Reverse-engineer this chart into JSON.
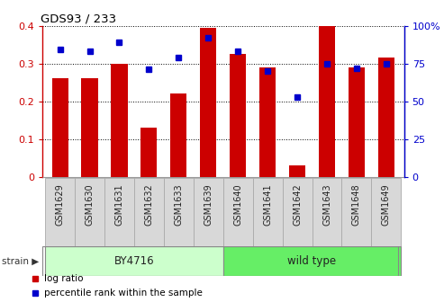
{
  "title": "GDS93 / 233",
  "categories": [
    "GSM1629",
    "GSM1630",
    "GSM1631",
    "GSM1632",
    "GSM1633",
    "GSM1639",
    "GSM1640",
    "GSM1641",
    "GSM1642",
    "GSM1643",
    "GSM1648",
    "GSM1649"
  ],
  "log_ratio": [
    0.26,
    0.26,
    0.3,
    0.13,
    0.22,
    0.395,
    0.325,
    0.29,
    0.03,
    0.4,
    0.29,
    0.315
  ],
  "percentile_rank": [
    84,
    83,
    89,
    71,
    79,
    92,
    83,
    70,
    53,
    75,
    72,
    75
  ],
  "strain_groups": [
    {
      "label": "BY4716",
      "start": 0,
      "end": 5,
      "color": "#ccffcc"
    },
    {
      "label": "wild type",
      "start": 6,
      "end": 11,
      "color": "#66ee66"
    }
  ],
  "bar_color": "#cc0000",
  "dot_color": "#0000cc",
  "bar_width": 0.55,
  "ylim_left": [
    0,
    0.4
  ],
  "ylim_right": [
    0,
    100
  ],
  "yticks_left": [
    0,
    0.1,
    0.2,
    0.3,
    0.4
  ],
  "yticks_right": [
    0,
    25,
    50,
    75,
    100
  ],
  "ytick_labels_left": [
    "0",
    "0.1",
    "0.2",
    "0.3",
    "0.4"
  ],
  "ytick_labels_right": [
    "0",
    "25",
    "50",
    "75",
    "100%"
  ],
  "left_tick_color": "#cc0000",
  "right_tick_color": "#0000cc",
  "strain_label": "strain",
  "legend_log_ratio": "log ratio",
  "legend_percentile": "percentile rank within the sample"
}
